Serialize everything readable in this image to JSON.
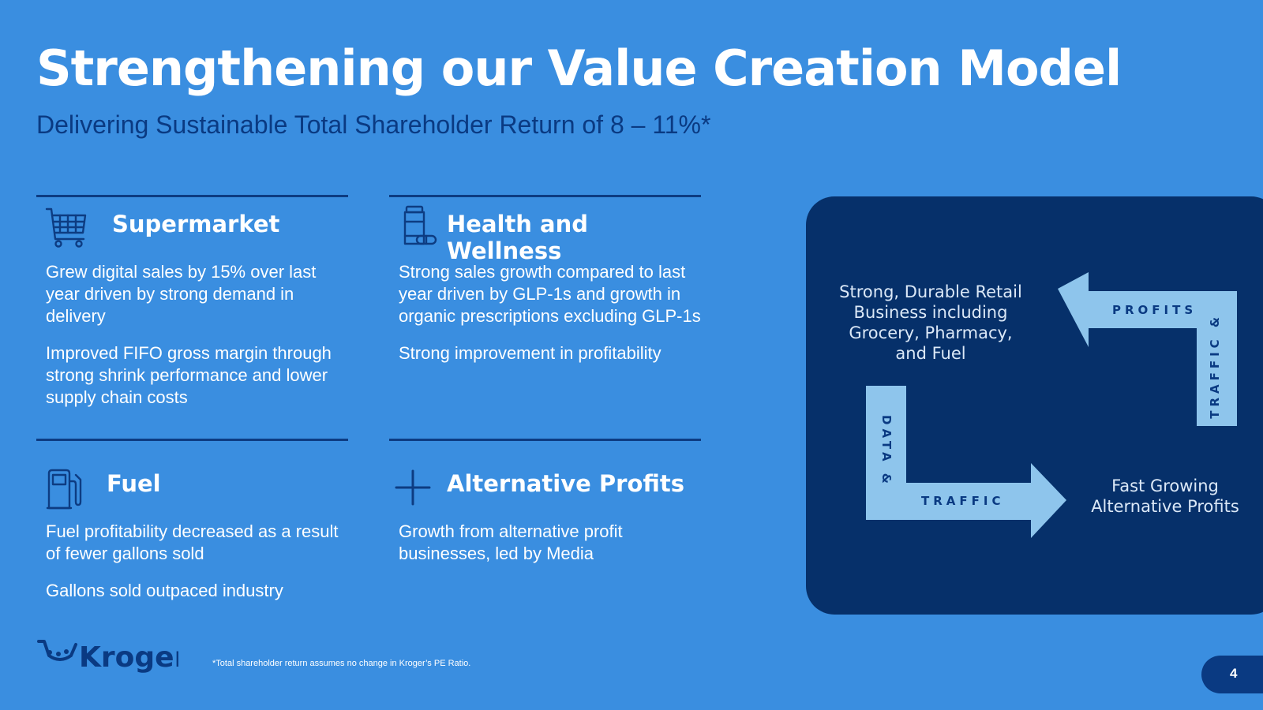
{
  "title": "Strengthening our Value Creation Model",
  "subtitle": "Delivering Sustainable Total Shareholder Return of 8 – 11%*",
  "sections": [
    {
      "title": "Supermarket",
      "icon": "shopping-cart-icon",
      "paragraphs": [
        "Grew digital sales by 15% over last year driven by strong demand in delivery",
        "Improved FIFO gross margin through strong shrink performance and lower supply chain costs"
      ]
    },
    {
      "title": "Health and Wellness",
      "icon": "pill-bottle-icon",
      "paragraphs": [
        "Strong sales growth compared to last year driven by GLP-1s and growth in organic prescriptions excluding GLP-1s",
        "Strong improvement in profitability"
      ]
    },
    {
      "title": "Fuel",
      "icon": "fuel-pump-icon",
      "paragraphs": [
        "Fuel profitability decreased as a result of fewer gallons sold",
        "Gallons sold outpaced industry"
      ]
    },
    {
      "title": "Alternative Profits",
      "icon": "plus-icon",
      "paragraphs": [
        "Growth from alternative profit businesses, led by Media"
      ]
    }
  ],
  "model": {
    "retail_text": "Strong, Durable Retail Business including Grocery, Pharmacy, and Fuel",
    "alt_profits_text": "Fast Growing Alternative Profits",
    "top_arrow_label": "PROFITS",
    "right_arrow_label": "TRAFFIC &",
    "left_arrow_label": "DATA &",
    "bottom_arrow_label": "TRAFFIC"
  },
  "footnote": "*Total shareholder return assumes no change in Kroger’s PE Ratio.",
  "logo_text": "Kroger",
  "page_number": "4",
  "colors": {
    "background": "#3a8ee0",
    "navy": "#0a3a82",
    "panel": "#06306a",
    "arrow": "#8ec5ec"
  }
}
